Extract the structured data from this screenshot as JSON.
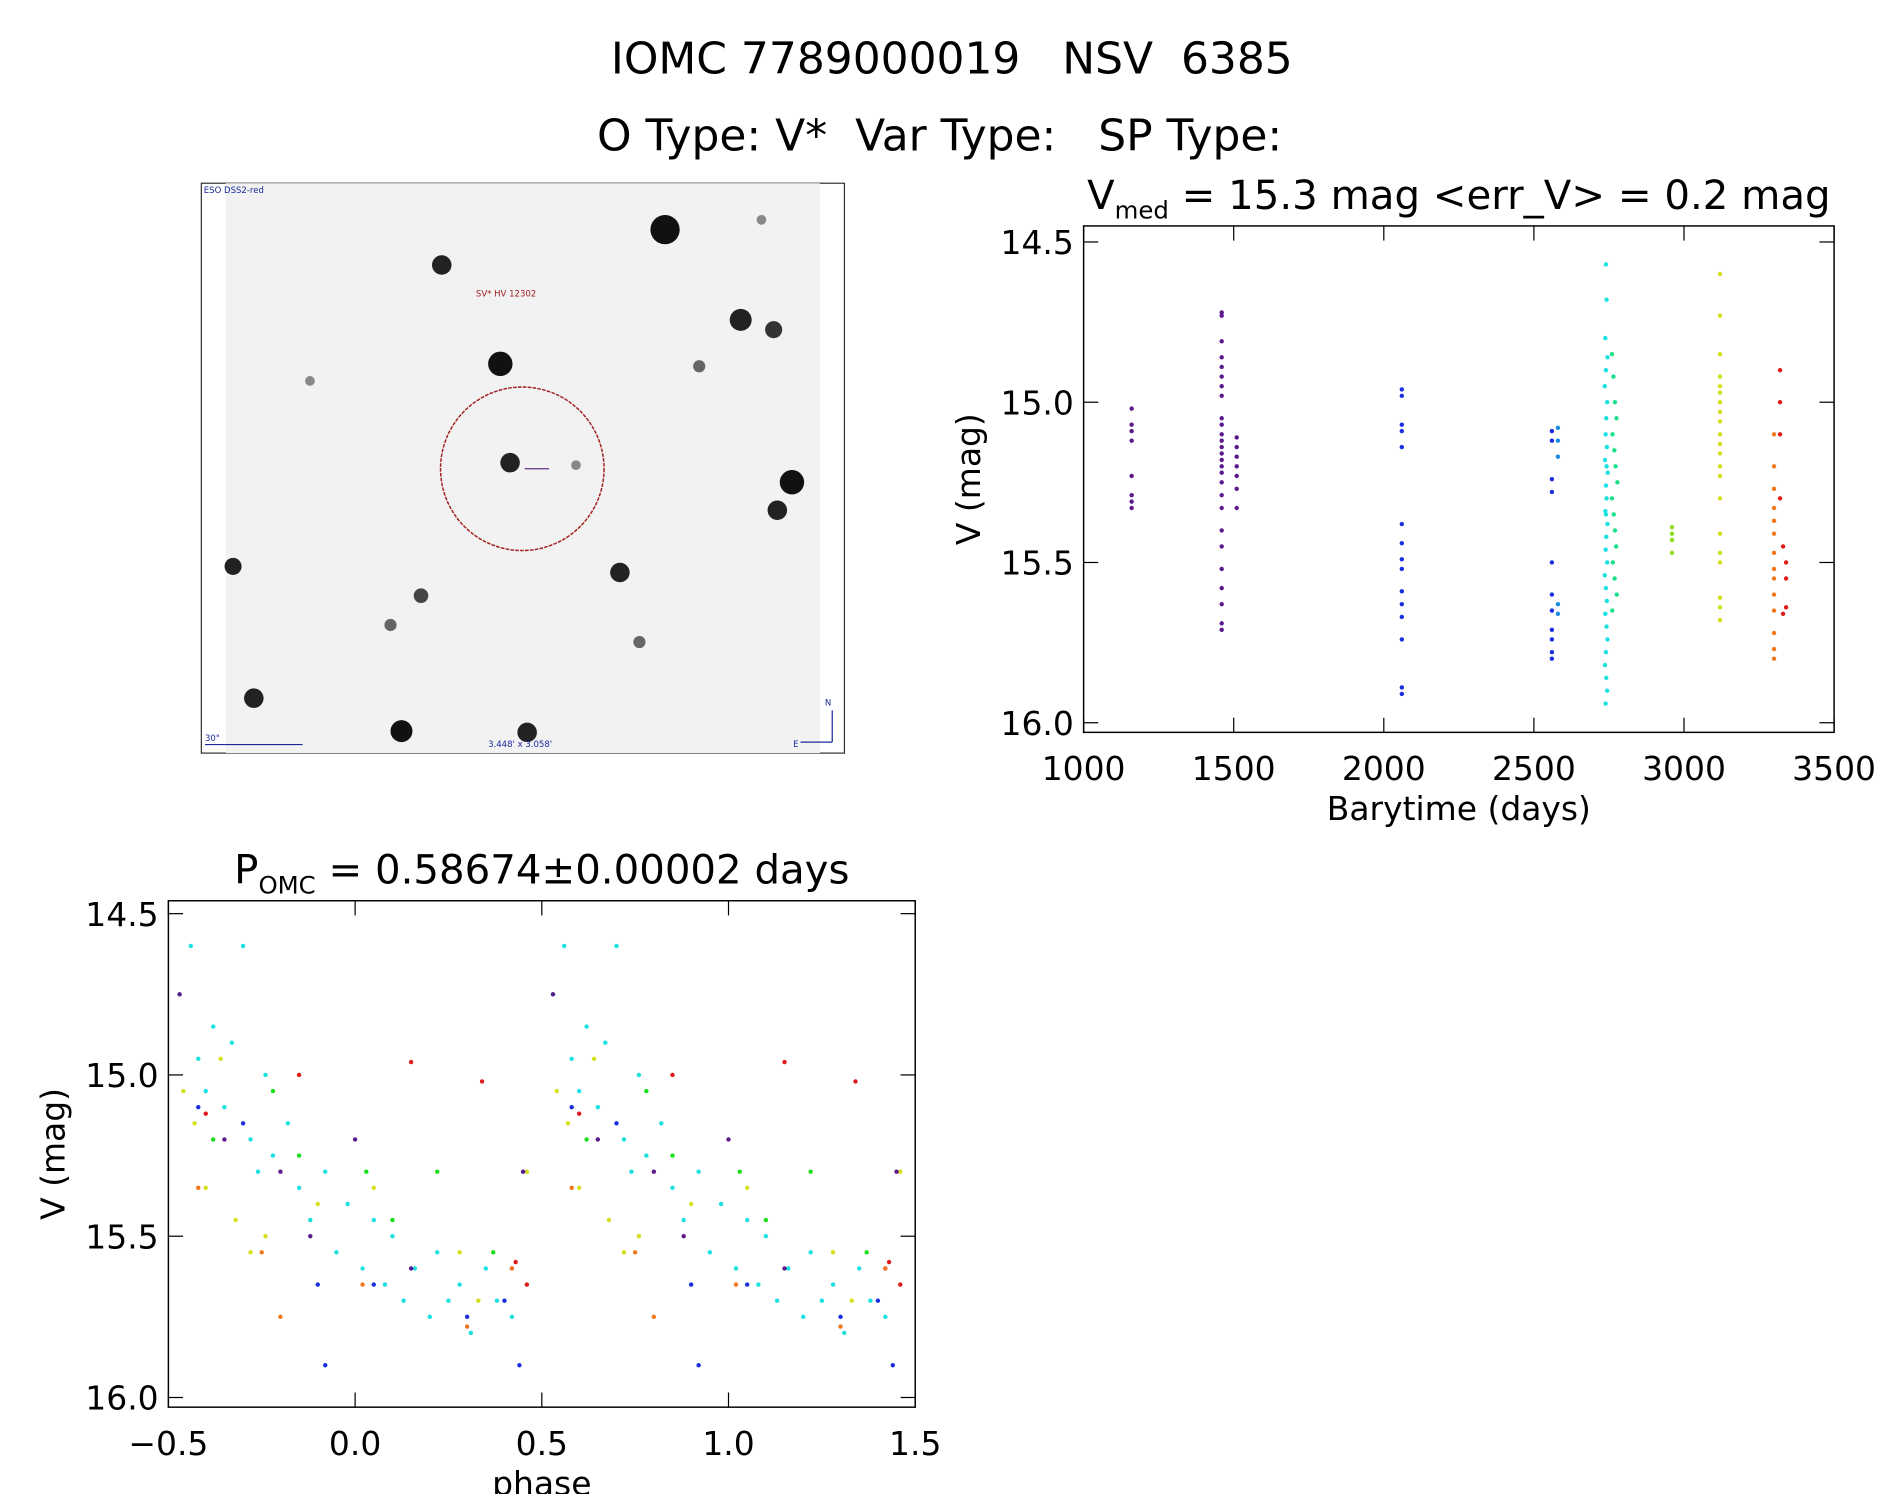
{
  "header": {
    "title": "IOMC 7789000019   NSV  6385",
    "subtitle": "O Type: V*  Var Type:   SP Type:"
  },
  "image": {
    "survey": "ESO DSS2-red",
    "target": "SV* HV 12302",
    "scale": "30\"",
    "size": "3.448' x 3.058'",
    "north": "N",
    "east": "E"
  },
  "chart_data": [
    {
      "type": "scatter",
      "title": [
        "V",
        "med",
        " = 15.3 mag <err_V> = 0.2 mag"
      ],
      "xlabel": "Barytime (days)",
      "ylabel": "V (mag)",
      "xlim": [
        1000,
        3500
      ],
      "xticks": [
        1000,
        1500,
        2000,
        2500,
        3000,
        3500
      ],
      "ylim": [
        16.03,
        14.45
      ],
      "yticks": [
        {
          "value": 16,
          "label": "16.0"
        },
        15.5,
        {
          "value": 15,
          "label": "15.0"
        },
        14.5
      ],
      "series": [
        {
          "color": "#5a1a8c",
          "x": [
            1160,
            1160,
            1160,
            1160,
            1160,
            1160,
            1160,
            1160,
            1460,
            1460,
            1460,
            1460,
            1460,
            1460,
            1460,
            1460,
            1460,
            1460,
            1460,
            1460,
            1460,
            1460,
            1460,
            1460,
            1460,
            1460,
            1460,
            1460,
            1460,
            1460,
            1460,
            1460,
            1460,
            1460,
            1460,
            1510,
            1510,
            1510,
            1510,
            1510,
            1510,
            1510
          ],
          "values": [
            15.02,
            15.07,
            15.09,
            15.12,
            15.23,
            15.29,
            15.31,
            15.33,
            14.72,
            14.73,
            14.81,
            14.86,
            14.89,
            14.92,
            14.95,
            14.98,
            15.05,
            15.07,
            15.1,
            15.12,
            15.14,
            15.16,
            15.18,
            15.2,
            15.22,
            15.25,
            15.29,
            15.33,
            15.4,
            15.45,
            15.52,
            15.58,
            15.63,
            15.69,
            15.71,
            15.11,
            15.14,
            15.17,
            15.2,
            15.23,
            15.27,
            15.33
          ]
        },
        {
          "color": "#1a2ee0",
          "x": [
            2060,
            2060,
            2060,
            2060,
            2060,
            2060,
            2060,
            2060,
            2060,
            2060,
            2060,
            2060,
            2060,
            2060,
            2060,
            2560,
            2560,
            2560,
            2560,
            2560,
            2560,
            2560,
            2560,
            2560,
            2560,
            2560
          ],
          "values": [
            14.96,
            14.98,
            15.07,
            15.09,
            15.14,
            15.38,
            15.44,
            15.49,
            15.52,
            15.59,
            15.63,
            15.67,
            15.74,
            15.89,
            15.91,
            15.09,
            15.12,
            15.24,
            15.28,
            15.5,
            15.6,
            15.65,
            15.71,
            15.74,
            15.78,
            15.8
          ]
        },
        {
          "color": "#1a8ce0",
          "x": [
            2580,
            2580,
            2580,
            2580,
            2580
          ],
          "values": [
            15.08,
            15.12,
            15.17,
            15.63,
            15.66
          ]
        },
        {
          "color": "#1ae0e0",
          "x": [
            2740,
            2742,
            2738,
            2745,
            2740,
            2736,
            2744,
            2741,
            2739,
            2743,
            2737,
            2746,
            2740,
            2742,
            2738,
            2745,
            2741,
            2739,
            2744,
            2736,
            2740,
            2743,
            2738,
            2742,
            2745,
            2740,
            2737,
            2741,
            2744,
            2739,
            2742,
            2740
          ],
          "values": [
            14.57,
            14.68,
            14.8,
            14.86,
            14.9,
            14.95,
            15.0,
            15.05,
            15.1,
            15.14,
            15.18,
            15.22,
            15.26,
            15.3,
            15.34,
            15.38,
            15.42,
            15.46,
            15.5,
            15.54,
            15.58,
            15.62,
            15.66,
            15.7,
            15.74,
            15.78,
            15.82,
            15.86,
            15.9,
            15.94,
            15.2,
            15.35
          ]
        },
        {
          "color": "#1ae08c",
          "x": [
            2760,
            2765,
            2770,
            2775,
            2762,
            2768,
            2772,
            2778,
            2760,
            2766,
            2770,
            2774,
            2763,
            2769,
            2776,
            2761
          ],
          "values": [
            14.85,
            14.92,
            15.0,
            15.05,
            15.1,
            15.15,
            15.2,
            15.25,
            15.3,
            15.35,
            15.4,
            15.45,
            15.5,
            15.55,
            15.6,
            15.65
          ]
        },
        {
          "color": "#8ce01a",
          "x": [
            2960,
            2960,
            2960,
            2960
          ],
          "values": [
            15.39,
            15.41,
            15.43,
            15.47
          ]
        },
        {
          "color": "#d4e01a",
          "x": [
            3120,
            3120,
            3120,
            3120,
            3120,
            3120,
            3120,
            3120,
            3120,
            3120,
            3120,
            3120,
            3120,
            3120,
            3120,
            3120,
            3120,
            3120,
            3120,
            3120,
            3120
          ],
          "values": [
            14.6,
            14.73,
            14.85,
            14.92,
            14.95,
            14.97,
            15.0,
            15.03,
            15.06,
            15.1,
            15.13,
            15.16,
            15.2,
            15.23,
            15.3,
            15.41,
            15.47,
            15.5,
            15.61,
            15.64,
            15.68
          ]
        },
        {
          "color": "#f0781a",
          "x": [
            3300,
            3300,
            3300,
            3300,
            3300,
            3300,
            3300,
            3300,
            3300,
            3300,
            3300,
            3300,
            3300,
            3300
          ],
          "values": [
            15.1,
            15.2,
            15.27,
            15.33,
            15.37,
            15.41,
            15.47,
            15.52,
            15.55,
            15.6,
            15.65,
            15.72,
            15.77,
            15.8
          ]
        },
        {
          "color": "#e01a1a",
          "x": [
            3320,
            3320,
            3320,
            3320,
            3330,
            3340,
            3340,
            3340,
            3330
          ],
          "values": [
            14.9,
            15.0,
            15.1,
            15.3,
            15.45,
            15.5,
            15.55,
            15.64,
            15.66
          ]
        }
      ]
    },
    {
      "type": "scatter",
      "title": [
        "P",
        "OMC",
        " = 0.58674±0.00002 days"
      ],
      "xlabel": "phase",
      "ylabel": "V (mag)",
      "xlim": [
        -0.5,
        1.5
      ],
      "xticks": [
        {
          "value": -0.5,
          "label": "−0.5"
        },
        {
          "value": 0,
          "label": "0.0"
        },
        0.5,
        {
          "value": 1,
          "label": "1.0"
        },
        1.5
      ],
      "ylim": [
        16.03,
        14.46
      ],
      "yticks": [
        {
          "value": 16,
          "label": "16.0"
        },
        15.5,
        {
          "value": 15,
          "label": "15.0"
        },
        14.5
      ],
      "series": [
        {
          "color": "#1ae0e0",
          "x": [
            -0.47,
            -0.44,
            -0.42,
            -0.4,
            -0.38,
            -0.35,
            -0.33,
            -0.3,
            -0.28,
            -0.26,
            -0.24,
            -0.22,
            -0.18,
            -0.15,
            -0.12,
            -0.08,
            -0.05,
            -0.02,
            0.02,
            0.05,
            0.08,
            0.1,
            0.13,
            0.16,
            0.2,
            0.22,
            0.25,
            0.28,
            0.31,
            0.35,
            0.38,
            0.42,
            0.53,
            0.56,
            0.58,
            0.6,
            0.62,
            0.65,
            0.67,
            0.7,
            0.72,
            0.74,
            0.76,
            0.78,
            0.82,
            0.85,
            0.88,
            0.92,
            0.95,
            0.98,
            1.02,
            1.05,
            1.08,
            1.1,
            1.13,
            1.16,
            1.2,
            1.22,
            1.25,
            1.28,
            1.31,
            1.35,
            1.38,
            1.42
          ],
          "values": [
            14.75,
            14.6,
            14.95,
            15.05,
            14.85,
            15.1,
            14.9,
            14.6,
            15.2,
            15.3,
            15.0,
            15.25,
            15.15,
            15.35,
            15.45,
            15.3,
            15.55,
            15.4,
            15.6,
            15.45,
            15.65,
            15.5,
            15.7,
            15.6,
            15.75,
            15.55,
            15.7,
            15.65,
            15.8,
            15.6,
            15.7,
            15.75,
            14.75,
            14.6,
            14.95,
            15.05,
            14.85,
            15.1,
            14.9,
            14.6,
            15.2,
            15.3,
            15.0,
            15.25,
            15.15,
            15.35,
            15.45,
            15.3,
            15.55,
            15.4,
            15.6,
            15.45,
            15.65,
            15.5,
            15.7,
            15.6,
            15.75,
            15.55,
            15.7,
            15.65,
            15.8,
            15.6,
            15.7,
            15.75
          ]
        },
        {
          "color": "#d4e01a",
          "x": [
            -0.46,
            -0.43,
            -0.4,
            -0.36,
            -0.32,
            -0.28,
            -0.24,
            -0.1,
            0.05,
            0.28,
            0.33,
            0.46,
            0.54,
            0.57,
            0.6,
            0.64,
            0.68,
            0.72,
            0.76,
            0.9,
            1.05,
            1.28,
            1.33,
            1.46
          ],
          "values": [
            15.05,
            15.15,
            15.35,
            14.95,
            15.45,
            15.55,
            15.5,
            15.4,
            15.35,
            15.55,
            15.7,
            15.3,
            15.05,
            15.15,
            15.35,
            14.95,
            15.45,
            15.55,
            15.5,
            15.4,
            15.35,
            15.55,
            15.7,
            15.3
          ]
        },
        {
          "color": "#1ae01a",
          "x": [
            -0.38,
            -0.22,
            -0.15,
            0.03,
            0.1,
            0.22,
            0.37,
            0.62,
            0.78,
            0.85,
            1.03,
            1.1,
            1.22,
            1.37
          ],
          "values": [
            15.2,
            15.05,
            15.25,
            15.3,
            15.45,
            15.3,
            15.55,
            15.2,
            15.05,
            15.25,
            15.3,
            15.45,
            15.3,
            15.55
          ]
        },
        {
          "color": "#1a2ee0",
          "x": [
            -0.42,
            -0.3,
            -0.1,
            0.05,
            0.3,
            0.4,
            0.44,
            -0.08,
            0.58,
            0.7,
            0.9,
            1.05,
            1.3,
            1.4,
            1.44,
            0.92
          ],
          "values": [
            15.1,
            15.15,
            15.65,
            15.65,
            15.75,
            15.7,
            15.9,
            15.9,
            15.1,
            15.15,
            15.65,
            15.65,
            15.75,
            15.7,
            15.9,
            15.9
          ]
        },
        {
          "color": "#5a1a8c",
          "x": [
            -0.47,
            -0.35,
            -0.2,
            -0.12,
            0.0,
            0.15,
            0.42,
            0.45,
            0.53,
            0.65,
            0.8,
            0.88,
            1.0,
            1.15,
            1.42,
            1.45
          ],
          "values": [
            14.75,
            15.2,
            15.3,
            15.5,
            15.2,
            15.6,
            15.6,
            15.3,
            14.75,
            15.2,
            15.3,
            15.5,
            15.2,
            15.6,
            15.6,
            15.3
          ]
        },
        {
          "color": "#f0781a",
          "x": [
            -0.42,
            -0.25,
            -0.2,
            0.02,
            0.3,
            0.42,
            0.58,
            0.75,
            0.8,
            1.02,
            1.3,
            1.42
          ],
          "values": [
            15.35,
            15.55,
            15.75,
            15.65,
            15.78,
            15.6,
            15.35,
            15.55,
            15.75,
            15.65,
            15.78,
            15.6
          ]
        },
        {
          "color": "#e01a1a",
          "x": [
            -0.4,
            -0.15,
            0.15,
            0.34,
            0.43,
            0.46,
            0.6,
            0.85,
            1.15,
            1.34,
            1.43,
            1.46
          ],
          "values": [
            15.12,
            15.0,
            14.96,
            15.02,
            15.58,
            15.65,
            15.12,
            15.0,
            14.96,
            15.02,
            15.58,
            15.65
          ]
        }
      ]
    }
  ]
}
